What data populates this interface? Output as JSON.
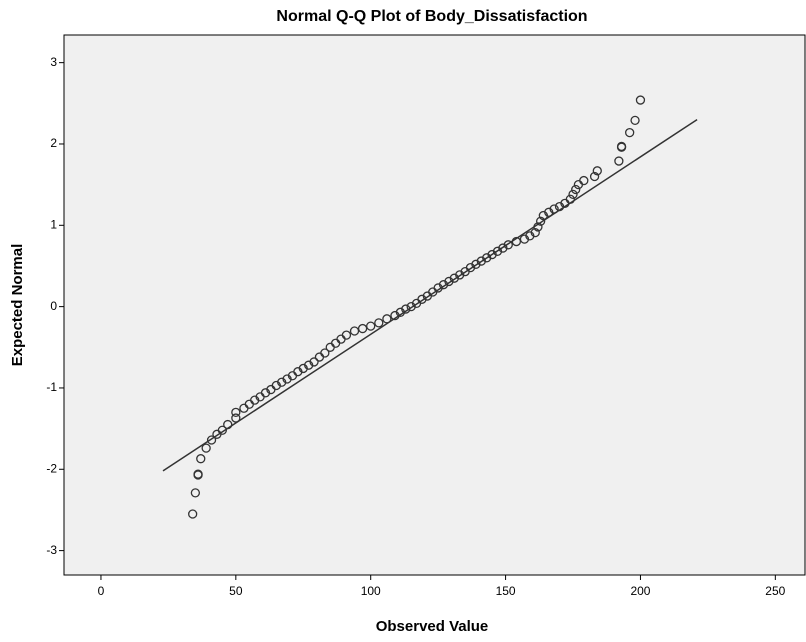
{
  "chart_data": {
    "type": "scatter",
    "title": "Normal Q-Q Plot of Body_Dissatisfaction",
    "x_label": "Observed Value",
    "y_label": "Expected Normal",
    "xlim": [
      -13.7,
      261
    ],
    "ylim": [
      -3.3,
      3.34
    ],
    "xticks": [
      0,
      50,
      100,
      150,
      200,
      250
    ],
    "yticks": [
      -3,
      -2,
      -1,
      0,
      1,
      2,
      3
    ],
    "color": "#333333",
    "x": [
      34,
      35,
      36,
      36,
      37,
      39,
      41,
      43,
      45,
      47,
      50,
      50,
      53,
      55,
      57,
      59,
      61,
      63,
      65,
      67,
      69,
      71,
      73,
      75,
      77,
      79,
      81,
      83,
      85,
      87,
      89,
      91,
      94,
      97,
      100,
      103,
      106,
      109,
      111,
      113,
      115,
      117,
      119,
      121,
      123,
      125,
      127,
      129,
      131,
      133,
      135,
      137,
      139,
      141,
      143,
      145,
      147,
      149,
      151,
      154,
      157,
      159,
      161,
      162,
      163,
      164,
      166,
      168,
      170,
      172,
      174,
      175,
      176,
      177,
      179,
      183,
      184,
      192,
      193,
      193,
      196,
      198,
      200
    ],
    "values": [
      -2.55,
      -2.29,
      -2.07,
      -2.06,
      -1.87,
      -1.74,
      -1.64,
      -1.57,
      -1.52,
      -1.45,
      -1.37,
      -1.3,
      -1.25,
      -1.2,
      -1.15,
      -1.11,
      -1.06,
      -1.02,
      -0.97,
      -0.93,
      -0.89,
      -0.85,
      -0.8,
      -0.76,
      -0.72,
      -0.68,
      -0.62,
      -0.57,
      -0.5,
      -0.45,
      -0.4,
      -0.35,
      -0.3,
      -0.27,
      -0.24,
      -0.2,
      -0.15,
      -0.11,
      -0.07,
      -0.03,
      0.0,
      0.04,
      0.09,
      0.13,
      0.18,
      0.23,
      0.27,
      0.31,
      0.35,
      0.39,
      0.43,
      0.48,
      0.52,
      0.56,
      0.6,
      0.64,
      0.68,
      0.72,
      0.76,
      0.8,
      0.83,
      0.87,
      0.91,
      0.98,
      1.05,
      1.12,
      1.16,
      1.2,
      1.23,
      1.27,
      1.32,
      1.38,
      1.44,
      1.5,
      1.55,
      1.6,
      1.67,
      1.79,
      1.96,
      1.97,
      2.14,
      2.29,
      2.54
    ],
    "reference_line": {
      "x": [
        23,
        221
      ],
      "y": [
        -2.02,
        2.3
      ]
    }
  }
}
